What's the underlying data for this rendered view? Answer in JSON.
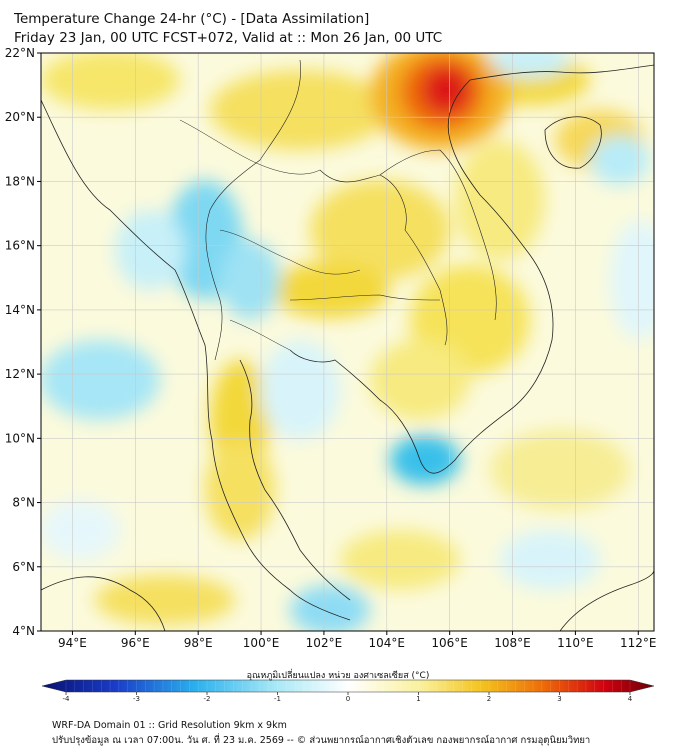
{
  "header": {
    "title_line1": "Temperature Change 24-hr (°C) - [Data Assimilation]",
    "title_line2": "Friday 23 Jan, 00 UTC FCST+072, Valid at :: Mon 26 Jan, 00 UTC"
  },
  "map": {
    "lat_range": [
      4,
      22
    ],
    "lon_range": [
      93,
      112.5
    ],
    "lat_labels": [
      "22°N",
      "20°N",
      "18°N",
      "16°N",
      "14°N",
      "12°N",
      "10°N",
      "8°N",
      "6°N",
      "4°N"
    ],
    "lat_values": [
      22,
      20,
      18,
      16,
      14,
      12,
      10,
      8,
      6,
      4
    ],
    "lon_labels": [
      "94°E",
      "96°E",
      "98°E",
      "100°E",
      "102°E",
      "104°E",
      "106°E",
      "108°E",
      "110°E",
      "112°E"
    ],
    "lon_values": [
      94,
      96,
      98,
      100,
      102,
      104,
      106,
      108,
      110,
      112
    ]
  },
  "colorbar": {
    "title": "อุณหภูมิเปลี่ยนแปลง หน่วย องศาเซลเซียส (°C)",
    "tick_labels": [
      "-4",
      "-3",
      "-2",
      "-1",
      "0",
      "1",
      "2",
      "3",
      "4"
    ],
    "tick_values": [
      -4,
      -3,
      -2,
      -1,
      0,
      1,
      2,
      3,
      4
    ],
    "range": [
      -4,
      4
    ]
  },
  "footer": {
    "line1": "WRF-DA Domain 01 :: Grid Resolution 9km x 9km",
    "line2": "ปรับปรุงข้อมูล ณ เวลา 07:00น. วัน ศ. ที่ 23 ม.ค. 2569 -- © ส่วนพยากรณ์อากาศเชิงตัวเลข กองพยากรณ์อากาศ กรมอุตุนิยมวิทยา"
  },
  "colors": {
    "cold_strong": "#0a1a8a",
    "cold": "#3ec8e8",
    "neutral": "#ffffff",
    "warm": "#f3dc3a",
    "hot": "#e4001a",
    "hot_strong": "#7a0008"
  }
}
